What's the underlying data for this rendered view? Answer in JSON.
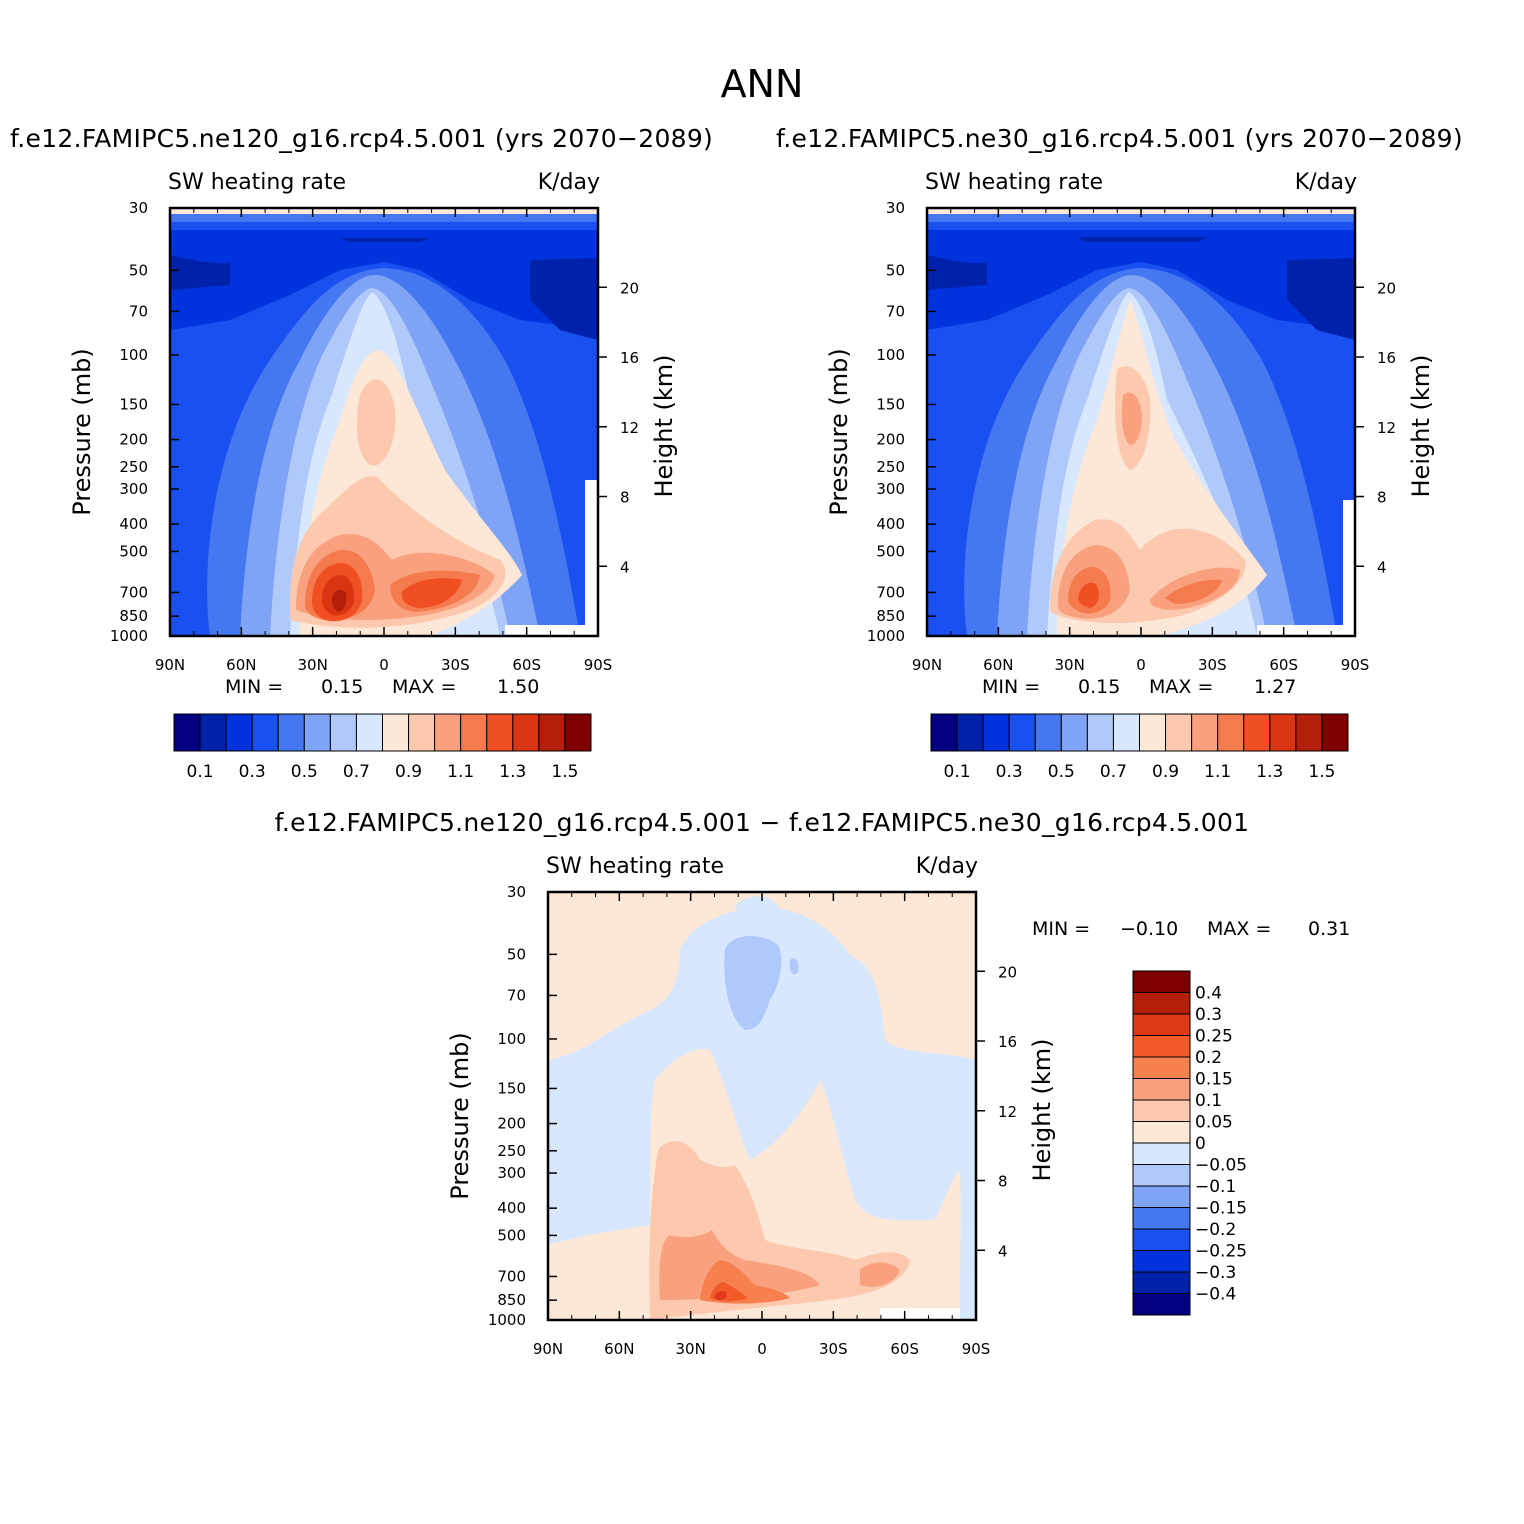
{
  "page": {
    "title": "ANN"
  },
  "panels": {
    "left": {
      "title": "f.e12.FAMIPC5.ne120_g16.rcp4.5.001 (yrs 2070−2089)",
      "variable": "SW heating rate",
      "units": "K/day",
      "min_label": "MIN =",
      "min_value": "0.15",
      "max_label": "MAX =",
      "max_value": "1.50"
    },
    "right": {
      "title": "f.e12.FAMIPC5.ne30_g16.rcp4.5.001 (yrs 2070−2089)",
      "variable": "SW heating rate",
      "units": "K/day",
      "min_label": "MIN =",
      "min_value": "0.15",
      "max_label": "MAX =",
      "max_value": "1.27"
    },
    "diff": {
      "title": "f.e12.FAMIPC5.ne120_g16.rcp4.5.001 − f.e12.FAMIPC5.ne30_g16.rcp4.5.001",
      "variable": "SW heating rate",
      "units": "K/day",
      "min_label": "MIN =",
      "min_value": "−0.10",
      "max_label": "MAX =",
      "max_value": "0.31"
    }
  },
  "colorbars": {
    "main": {
      "colors": [
        "#000080",
        "#0022aa",
        "#0033dd",
        "#1a4ff0",
        "#4477f0",
        "#7fa4f5",
        "#b1c9fa",
        "#d7e7fd",
        "#fde7d6",
        "#fcc8ae",
        "#f9a17e",
        "#f57a4e",
        "#f04f23",
        "#d93513",
        "#b31f0a",
        "#7f0000"
      ],
      "labels": [
        "0.1",
        "0.3",
        "0.5",
        "0.7",
        "0.9",
        "1.1",
        "1.3",
        "1.5"
      ]
    },
    "diff": {
      "colors": [
        "#7f0000",
        "#b31f0a",
        "#e0391a",
        "#f25a2a",
        "#f7804f",
        "#f9a17e",
        "#fcc8ae",
        "#fde7d6",
        "#d7e7fd",
        "#b1c9fa",
        "#7fa4f5",
        "#4477f0",
        "#1a4ff0",
        "#0033dd",
        "#0022aa",
        "#000080"
      ],
      "labels": [
        "0.4",
        "0.3",
        "0.25",
        "0.2",
        "0.15",
        "0.1",
        "0.05",
        "0",
        "−0.05",
        "−0.1",
        "−0.15",
        "−0.2",
        "−0.25",
        "−0.3",
        "−0.4"
      ]
    }
  },
  "chart_data": [
    {
      "type": "heatmap",
      "name": "left",
      "title": "f.e12.FAMIPC5.ne120_g16.rcp4.5.001 (yrs 2070−2089)",
      "xlabel": "",
      "ylabel": "Pressure (mb)",
      "y2label": "Height (km)",
      "x_ticks": [
        "90N",
        "60N",
        "30N",
        "0",
        "30S",
        "60S",
        "90S"
      ],
      "y_ticks": [
        30,
        50,
        70,
        100,
        150,
        200,
        250,
        300,
        400,
        500,
        700,
        850,
        1000
      ],
      "y_scale": "log",
      "ylim": [
        1000,
        30
      ],
      "y2_ticks": [
        20,
        16,
        12,
        8,
        4
      ],
      "min": 0.15,
      "max": 1.5
    },
    {
      "type": "heatmap",
      "name": "right",
      "title": "f.e12.FAMIPC5.ne30_g16.rcp4.5.001 (yrs 2070−2089)",
      "xlabel": "",
      "ylabel": "Pressure (mb)",
      "y2label": "Height (km)",
      "x_ticks": [
        "90N",
        "60N",
        "30N",
        "0",
        "30S",
        "60S",
        "90S"
      ],
      "y_ticks": [
        30,
        50,
        70,
        100,
        150,
        200,
        250,
        300,
        400,
        500,
        700,
        850,
        1000
      ],
      "y_scale": "log",
      "ylim": [
        1000,
        30
      ],
      "y2_ticks": [
        20,
        16,
        12,
        8,
        4
      ],
      "min": 0.15,
      "max": 1.27
    },
    {
      "type": "heatmap",
      "name": "diff",
      "title": "f.e12.FAMIPC5.ne120_g16.rcp4.5.001 − f.e12.FAMIPC5.ne30_g16.rcp4.5.001",
      "xlabel": "",
      "ylabel": "Pressure (mb)",
      "y2label": "Height (km)",
      "x_ticks": [
        "90N",
        "60N",
        "30N",
        "0",
        "30S",
        "60S",
        "90S"
      ],
      "y_ticks": [
        30,
        50,
        70,
        100,
        150,
        200,
        250,
        300,
        400,
        500,
        700,
        850,
        1000
      ],
      "y_scale": "log",
      "ylim": [
        1000,
        30
      ],
      "y2_ticks": [
        20,
        16,
        12,
        8,
        4
      ],
      "min": -0.1,
      "max": 0.31
    }
  ]
}
